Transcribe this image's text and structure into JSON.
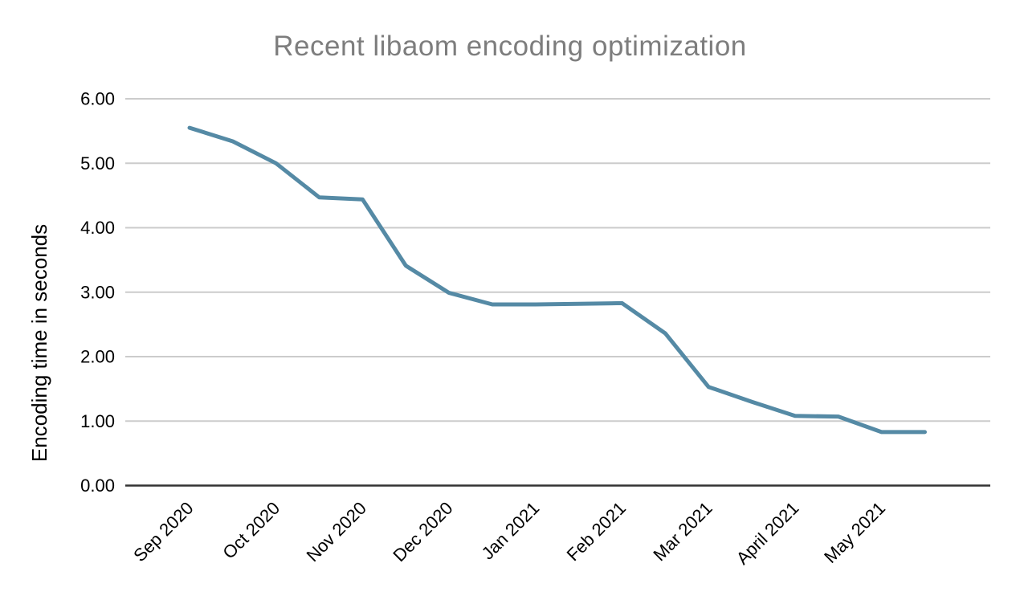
{
  "chart_data": {
    "type": "line",
    "title": "Recent libaom encoding optimization",
    "xlabel": "",
    "ylabel": "Encoding time in seconds",
    "x_tick_labels": [
      "Sep 2020",
      "Oct 2020",
      "Nov 2020",
      "Dec 2020",
      "Jan 2021",
      "Feb 2021",
      "Mar 2021",
      "April 2021",
      "May 2021"
    ],
    "points_per_month": 2,
    "y_tick_labels": [
      "0.00",
      "1.00",
      "2.00",
      "3.00",
      "4.00",
      "5.00",
      "6.00"
    ],
    "ylim": [
      0,
      6
    ],
    "grid": "horizontal",
    "legend": "none",
    "series": [
      {
        "name": "Encoding time in seconds",
        "values": [
          5.55,
          5.34,
          5.0,
          4.47,
          4.44,
          3.41,
          2.99,
          2.81,
          2.81,
          2.82,
          2.83,
          2.36,
          1.53,
          1.3,
          1.08,
          1.07,
          0.83,
          0.83
        ]
      }
    ],
    "colors": {
      "line": "#558aa5",
      "grid": "#cccccc",
      "axis": "#333333",
      "title_text": "#7d7d7d",
      "tick_text": "#000000",
      "background": "#ffffff"
    }
  }
}
